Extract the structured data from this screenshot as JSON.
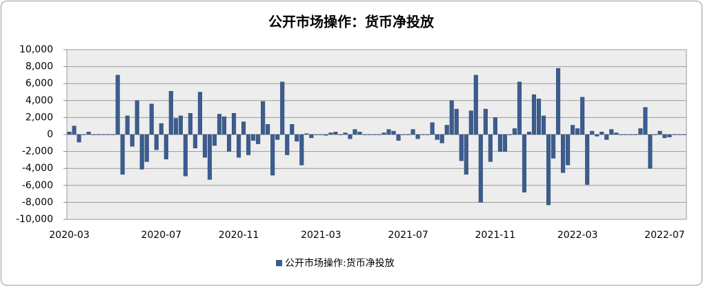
{
  "chart_data": {
    "type": "bar",
    "title": "公开市场操作：货币净投放",
    "categories": [
      "2020-03",
      null,
      null,
      null,
      null,
      null,
      null,
      null,
      null,
      null,
      null,
      null,
      null,
      null,
      null,
      null,
      null,
      null,
      null,
      "2020-07",
      null,
      null,
      null,
      null,
      null,
      null,
      null,
      null,
      null,
      null,
      null,
      null,
      null,
      null,
      null,
      "2020-11",
      null,
      null,
      null,
      null,
      null,
      null,
      null,
      null,
      null,
      null,
      null,
      null,
      null,
      null,
      null,
      null,
      "2021-03",
      null,
      null,
      null,
      null,
      null,
      null,
      null,
      null,
      null,
      null,
      null,
      null,
      null,
      null,
      null,
      null,
      null,
      "2021-07",
      null,
      null,
      null,
      null,
      null,
      null,
      null,
      null,
      null,
      null,
      null,
      null,
      null,
      null,
      null,
      null,
      null,
      "2021-11",
      null,
      null,
      null,
      null,
      null,
      null,
      null,
      null,
      null,
      null,
      null,
      null,
      null,
      null,
      null,
      null,
      "2022-03",
      null,
      null,
      null,
      null,
      null,
      null,
      null,
      null,
      null,
      null,
      null,
      null,
      null,
      null,
      null,
      null,
      null,
      "2022-07",
      null,
      null,
      null,
      null
    ],
    "series": [
      {
        "name": "公开市场操作:货币净投放",
        "color": "#3c5d8e",
        "values": [
          300,
          1000,
          -900,
          0,
          300,
          0,
          0,
          0,
          0,
          0,
          7000,
          -4700,
          2200,
          -1400,
          4000,
          -4100,
          -3200,
          3600,
          -1800,
          1300,
          -2900,
          5100,
          1900,
          2200,
          -4900,
          2500,
          -1600,
          5000,
          -2700,
          -5300,
          -1300,
          2400,
          2100,
          -2000,
          2500,
          -2700,
          1500,
          -2400,
          -700,
          -1100,
          3900,
          1200,
          -4800,
          -600,
          6200,
          -2400,
          1200,
          -800,
          -3600,
          100,
          -400,
          0,
          0,
          -100,
          200,
          300,
          0,
          200,
          -500,
          600,
          300,
          0,
          0,
          0,
          0,
          200,
          600,
          400,
          -700,
          0,
          0,
          600,
          -500,
          0,
          0,
          1400,
          -600,
          -1000,
          1100,
          4000,
          3000,
          -3100,
          -4700,
          2800,
          7000,
          -8000,
          3000,
          -3200,
          2000,
          -2000,
          -2000,
          0,
          700,
          6200,
          -6800,
          300,
          4700,
          4200,
          2200,
          -8300,
          -2800,
          7800,
          -4500,
          -3600,
          1100,
          700,
          4400,
          -5900,
          400,
          -200,
          300,
          -600,
          600,
          200,
          0,
          0,
          0,
          0,
          700,
          3200,
          -4000,
          0,
          400,
          -400,
          -300,
          0,
          0,
          0
        ]
      }
    ],
    "ylim": [
      -10000,
      10000
    ],
    "yticks": [
      {
        "value": -10000,
        "label": "-10,000"
      },
      {
        "value": -8000,
        "label": "-8,000"
      },
      {
        "value": -6000,
        "label": "-6,000"
      },
      {
        "value": -4000,
        "label": "-4,000"
      },
      {
        "value": -2000,
        "label": "-2,000"
      },
      0,
      {
        "value": 2000,
        "label": "2,000"
      },
      {
        "value": 4000,
        "label": "4,000"
      },
      {
        "value": 6000,
        "label": "6,000"
      },
      {
        "value": 8000,
        "label": "8,000"
      },
      {
        "value": 10000,
        "label": "10,000"
      }
    ],
    "grid": true
  }
}
